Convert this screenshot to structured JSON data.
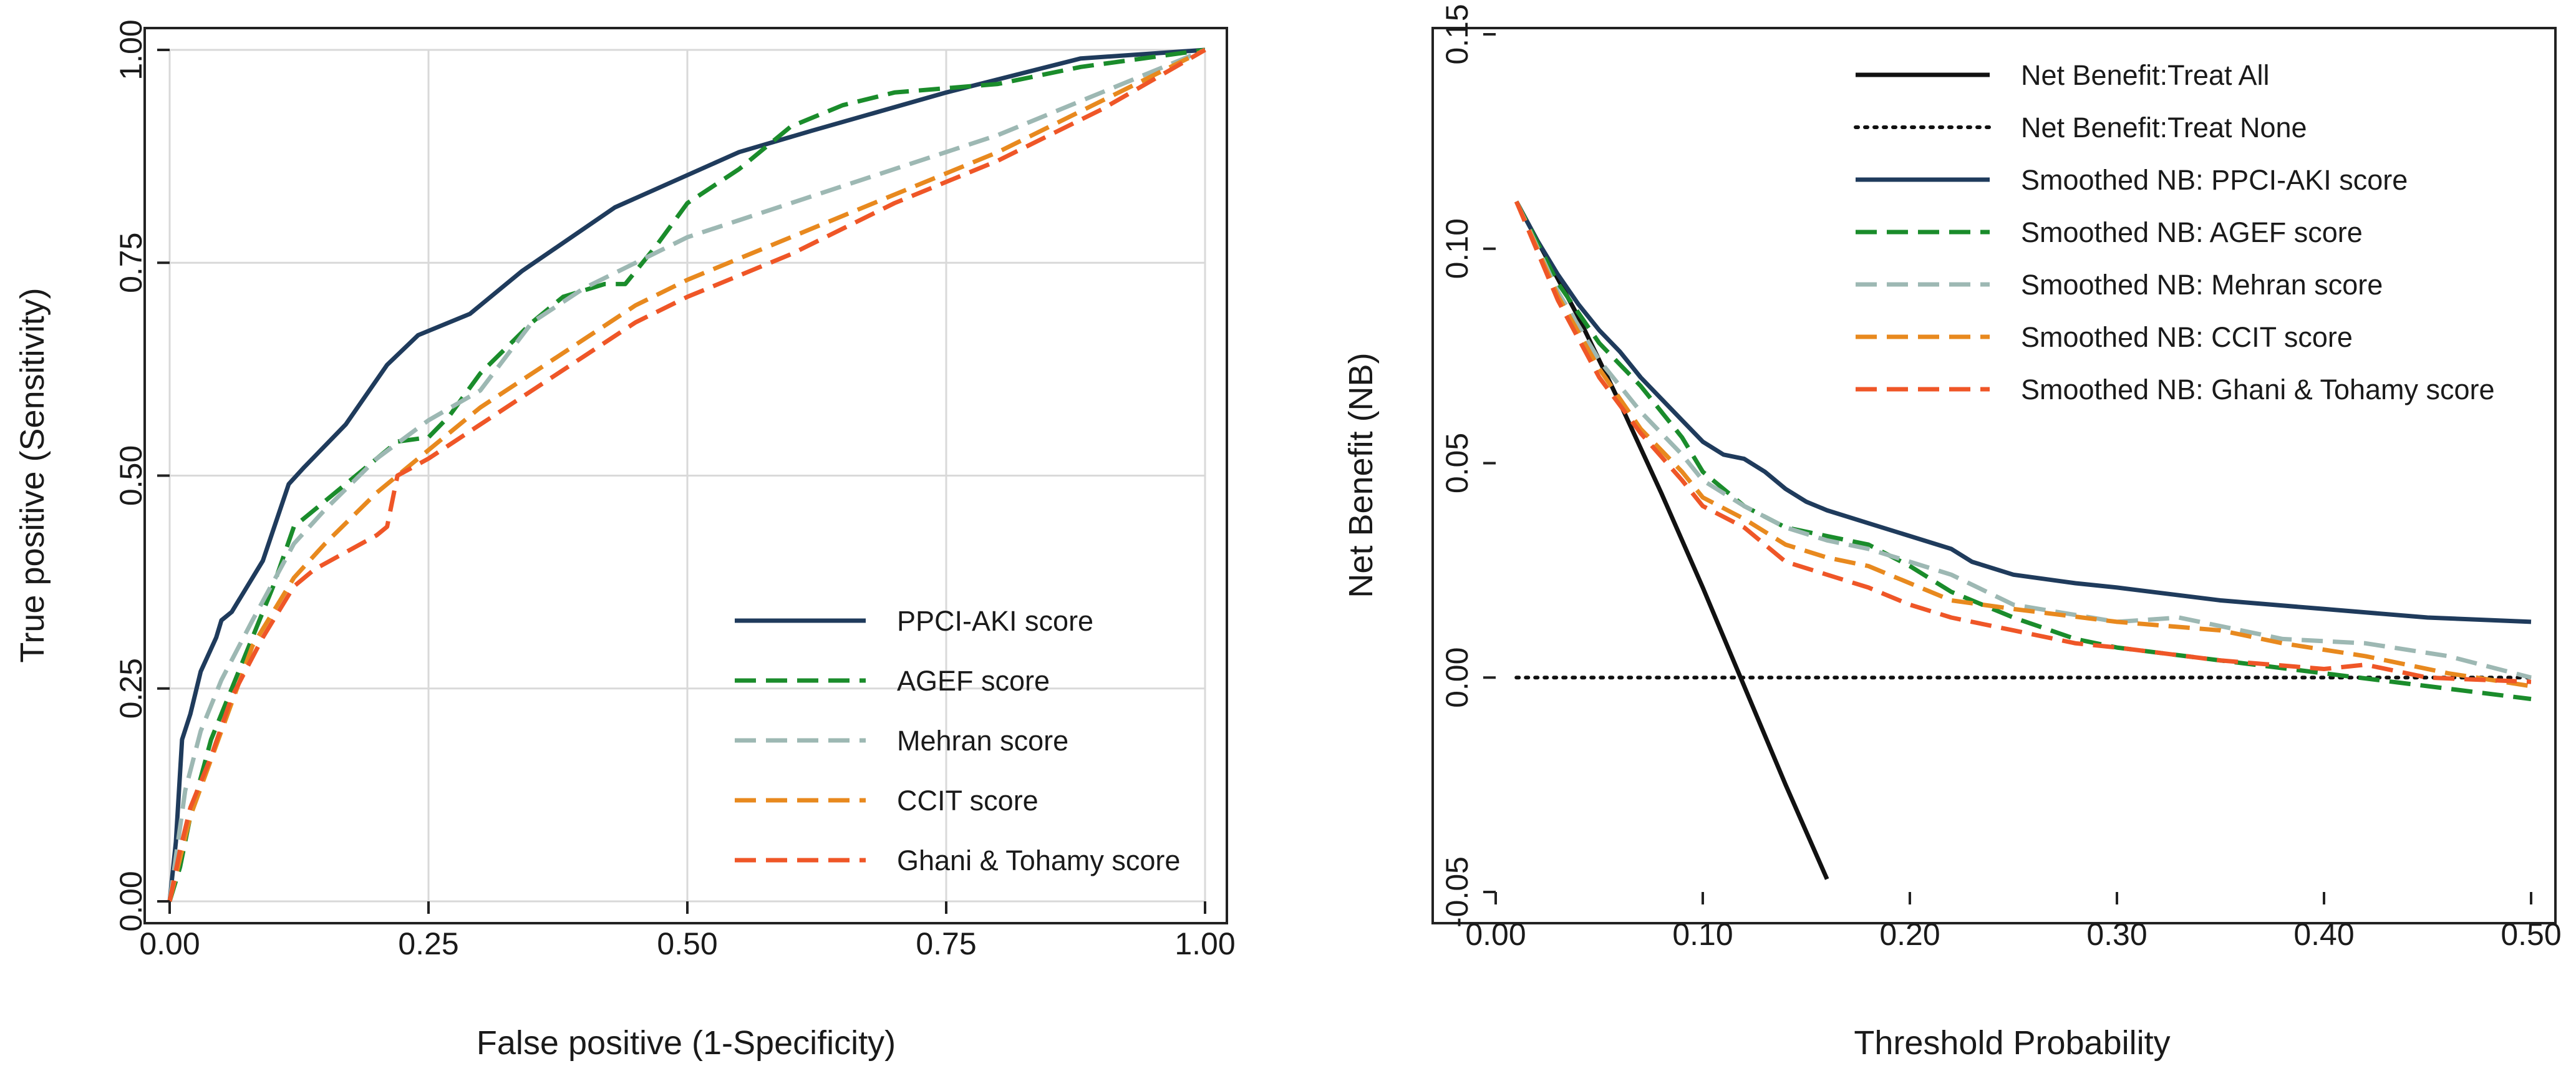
{
  "chart_data": [
    {
      "type": "line",
      "title": "",
      "xlabel": "False positive (1-Specificity)",
      "ylabel": "True positive (Sensitivity)",
      "xlim": [
        0,
        1
      ],
      "ylim": [
        0,
        1
      ],
      "grid": true,
      "legend_position": "bottom-right",
      "x_ticks": [
        "0.00",
        "0.25",
        "0.50",
        "0.75",
        "1.00"
      ],
      "y_ticks": [
        "0.00",
        "0.25",
        "0.50",
        "0.75",
        "1.00"
      ],
      "series": [
        {
          "name": "PPCI-AKI score",
          "color": "#1f3b5c",
          "dash": "solid",
          "points": [
            [
              0,
              0
            ],
            [
              0.006,
              0.07
            ],
            [
              0.012,
              0.19
            ],
            [
              0.02,
              0.22
            ],
            [
              0.03,
              0.27
            ],
            [
              0.045,
              0.31
            ],
            [
              0.05,
              0.33
            ],
            [
              0.06,
              0.34
            ],
            [
              0.08,
              0.38
            ],
            [
              0.09,
              0.4
            ],
            [
              0.115,
              0.49
            ],
            [
              0.13,
              0.51
            ],
            [
              0.17,
              0.56
            ],
            [
              0.21,
              0.63
            ],
            [
              0.24,
              0.665
            ],
            [
              0.29,
              0.69
            ],
            [
              0.34,
              0.74
            ],
            [
              0.43,
              0.815
            ],
            [
              0.55,
              0.88
            ],
            [
              0.62,
              0.905
            ],
            [
              0.75,
              0.95
            ],
            [
              0.88,
              0.99
            ],
            [
              1,
              1
            ]
          ]
        },
        {
          "name": "AGEF score",
          "color": "#1a8c2b",
          "dash": "dashed",
          "points": [
            [
              0,
              0
            ],
            [
              0.01,
              0.04
            ],
            [
              0.02,
              0.1
            ],
            [
              0.04,
              0.19
            ],
            [
              0.06,
              0.25
            ],
            [
              0.08,
              0.31
            ],
            [
              0.1,
              0.37
            ],
            [
              0.12,
              0.44
            ],
            [
              0.15,
              0.47
            ],
            [
              0.17,
              0.49
            ],
            [
              0.2,
              0.52
            ],
            [
              0.22,
              0.54
            ],
            [
              0.25,
              0.545
            ],
            [
              0.27,
              0.57
            ],
            [
              0.3,
              0.62
            ],
            [
              0.35,
              0.68
            ],
            [
              0.38,
              0.71
            ],
            [
              0.42,
              0.725
            ],
            [
              0.44,
              0.725
            ],
            [
              0.47,
              0.77
            ],
            [
              0.5,
              0.82
            ],
            [
              0.55,
              0.86
            ],
            [
              0.6,
              0.91
            ],
            [
              0.65,
              0.935
            ],
            [
              0.7,
              0.95
            ],
            [
              0.75,
              0.955
            ],
            [
              0.8,
              0.96
            ],
            [
              0.88,
              0.98
            ],
            [
              1,
              1
            ]
          ]
        },
        {
          "name": "Mehran score",
          "color": "#9db8b3",
          "dash": "dashed",
          "points": [
            [
              0,
              0
            ],
            [
              0.015,
              0.13
            ],
            [
              0.03,
              0.2
            ],
            [
              0.05,
              0.26
            ],
            [
              0.08,
              0.33
            ],
            [
              0.12,
              0.42
            ],
            [
              0.15,
              0.46
            ],
            [
              0.2,
              0.52
            ],
            [
              0.25,
              0.565
            ],
            [
              0.3,
              0.6
            ],
            [
              0.35,
              0.68
            ],
            [
              0.4,
              0.72
            ],
            [
              0.45,
              0.75
            ],
            [
              0.5,
              0.78
            ],
            [
              0.55,
              0.8
            ],
            [
              0.6,
              0.82
            ],
            [
              0.7,
              0.86
            ],
            [
              0.8,
              0.9
            ],
            [
              0.9,
              0.95
            ],
            [
              1,
              1
            ]
          ]
        },
        {
          "name": "CCIT score",
          "color": "#e8891e",
          "dash": "dashed",
          "points": [
            [
              0,
              0
            ],
            [
              0.02,
              0.1
            ],
            [
              0.05,
              0.2
            ],
            [
              0.08,
              0.3
            ],
            [
              0.12,
              0.38
            ],
            [
              0.15,
              0.42
            ],
            [
              0.2,
              0.48
            ],
            [
              0.25,
              0.53
            ],
            [
              0.3,
              0.58
            ],
            [
              0.35,
              0.62
            ],
            [
              0.4,
              0.66
            ],
            [
              0.45,
              0.7
            ],
            [
              0.5,
              0.73
            ],
            [
              0.6,
              0.78
            ],
            [
              0.7,
              0.83
            ],
            [
              0.8,
              0.88
            ],
            [
              0.9,
              0.94
            ],
            [
              1,
              1
            ]
          ]
        },
        {
          "name": "Ghani & Tohamy score",
          "color": "#ef5627",
          "dash": "dashed",
          "points": [
            [
              0,
              0
            ],
            [
              0.01,
              0.06
            ],
            [
              0.02,
              0.11
            ],
            [
              0.04,
              0.17
            ],
            [
              0.06,
              0.24
            ],
            [
              0.09,
              0.31
            ],
            [
              0.12,
              0.37
            ],
            [
              0.14,
              0.39
            ],
            [
              0.17,
              0.41
            ],
            [
              0.2,
              0.43
            ],
            [
              0.21,
              0.44
            ],
            [
              0.22,
              0.5
            ],
            [
              0.25,
              0.52
            ],
            [
              0.3,
              0.56
            ],
            [
              0.35,
              0.6
            ],
            [
              0.4,
              0.64
            ],
            [
              0.45,
              0.68
            ],
            [
              0.5,
              0.71
            ],
            [
              0.6,
              0.76
            ],
            [
              0.7,
              0.82
            ],
            [
              0.8,
              0.87
            ],
            [
              0.9,
              0.93
            ],
            [
              1,
              1
            ]
          ]
        }
      ]
    },
    {
      "type": "line",
      "title": "",
      "xlabel": "Threshold Probability",
      "ylabel": "Net Benefit (NB)",
      "xlim": [
        0,
        0.5
      ],
      "ylim": [
        -0.05,
        0.15
      ],
      "grid": false,
      "legend_position": "top-right",
      "x_ticks": [
        "0.00",
        "0.10",
        "0.20",
        "0.30",
        "0.40",
        "0.50"
      ],
      "y_ticks": [
        "-0.05",
        "0.00",
        "0.05",
        "0.10",
        "0.15"
      ],
      "series": [
        {
          "name": "Net Benefit:Treat All",
          "color": "#111111",
          "dash": "solid",
          "points": [
            [
              0.01,
              0.111
            ],
            [
              0.02,
              0.102
            ],
            [
              0.04,
              0.084
            ],
            [
              0.06,
              0.064
            ],
            [
              0.08,
              0.043
            ],
            [
              0.1,
              0.021
            ],
            [
              0.12,
              -0.002
            ],
            [
              0.14,
              -0.025
            ],
            [
              0.16,
              -0.047
            ]
          ]
        },
        {
          "name": "Net Benefit:Treat None",
          "color": "#111111",
          "dash": "dotted",
          "points": [
            [
              0.01,
              0
            ],
            [
              0.5,
              0
            ]
          ]
        },
        {
          "name": "Smoothed NB: PPCI-AKI score",
          "color": "#1f3b5c",
          "dash": "solid",
          "points": [
            [
              0.01,
              0.111
            ],
            [
              0.02,
              0.102
            ],
            [
              0.03,
              0.094
            ],
            [
              0.04,
              0.087
            ],
            [
              0.05,
              0.081
            ],
            [
              0.06,
              0.076
            ],
            [
              0.07,
              0.07
            ],
            [
              0.08,
              0.065
            ],
            [
              0.09,
              0.06
            ],
            [
              0.1,
              0.055
            ],
            [
              0.11,
              0.052
            ],
            [
              0.12,
              0.051
            ],
            [
              0.13,
              0.048
            ],
            [
              0.14,
              0.044
            ],
            [
              0.15,
              0.041
            ],
            [
              0.16,
              0.039
            ],
            [
              0.18,
              0.036
            ],
            [
              0.2,
              0.033
            ],
            [
              0.22,
              0.03
            ],
            [
              0.23,
              0.027
            ],
            [
              0.25,
              0.024
            ],
            [
              0.28,
              0.022
            ],
            [
              0.3,
              0.021
            ],
            [
              0.35,
              0.018
            ],
            [
              0.4,
              0.016
            ],
            [
              0.45,
              0.014
            ],
            [
              0.5,
              0.013
            ]
          ]
        },
        {
          "name": "Smoothed NB: AGEF score",
          "color": "#1a8c2b",
          "dash": "dashed",
          "points": [
            [
              0.01,
              0.111
            ],
            [
              0.03,
              0.092
            ],
            [
              0.05,
              0.078
            ],
            [
              0.07,
              0.068
            ],
            [
              0.09,
              0.056
            ],
            [
              0.1,
              0.048
            ],
            [
              0.12,
              0.04
            ],
            [
              0.14,
              0.035
            ],
            [
              0.16,
              0.033
            ],
            [
              0.18,
              0.031
            ],
            [
              0.2,
              0.026
            ],
            [
              0.22,
              0.02
            ],
            [
              0.25,
              0.014
            ],
            [
              0.28,
              0.009
            ],
            [
              0.3,
              0.007
            ],
            [
              0.35,
              0.004
            ],
            [
              0.4,
              0.001
            ],
            [
              0.45,
              -0.002
            ],
            [
              0.5,
              -0.005
            ]
          ]
        },
        {
          "name": "Smoothed NB: Mehran score",
          "color": "#9db8b3",
          "dash": "dashed",
          "points": [
            [
              0.01,
              0.111
            ],
            [
              0.03,
              0.09
            ],
            [
              0.05,
              0.074
            ],
            [
              0.07,
              0.062
            ],
            [
              0.09,
              0.052
            ],
            [
              0.1,
              0.046
            ],
            [
              0.12,
              0.04
            ],
            [
              0.14,
              0.035
            ],
            [
              0.16,
              0.032
            ],
            [
              0.18,
              0.03
            ],
            [
              0.2,
              0.027
            ],
            [
              0.22,
              0.024
            ],
            [
              0.25,
              0.017
            ],
            [
              0.3,
              0.013
            ],
            [
              0.33,
              0.014
            ],
            [
              0.35,
              0.012
            ],
            [
              0.38,
              0.009
            ],
            [
              0.42,
              0.008
            ],
            [
              0.46,
              0.005
            ],
            [
              0.5,
              0.0
            ]
          ]
        },
        {
          "name": "Smoothed NB: CCIT score",
          "color": "#e8891e",
          "dash": "dashed",
          "points": [
            [
              0.01,
              0.111
            ],
            [
              0.03,
              0.089
            ],
            [
              0.05,
              0.072
            ],
            [
              0.07,
              0.058
            ],
            [
              0.09,
              0.048
            ],
            [
              0.1,
              0.042
            ],
            [
              0.12,
              0.037
            ],
            [
              0.14,
              0.031
            ],
            [
              0.16,
              0.028
            ],
            [
              0.18,
              0.026
            ],
            [
              0.2,
              0.022
            ],
            [
              0.22,
              0.018
            ],
            [
              0.25,
              0.016
            ],
            [
              0.3,
              0.013
            ],
            [
              0.35,
              0.011
            ],
            [
              0.38,
              0.008
            ],
            [
              0.42,
              0.005
            ],
            [
              0.46,
              0.001
            ],
            [
              0.5,
              -0.002
            ]
          ]
        },
        {
          "name": "Smoothed NB: Ghani & Tohamy score",
          "color": "#ef5627",
          "dash": "dashed",
          "points": [
            [
              0.01,
              0.111
            ],
            [
              0.03,
              0.088
            ],
            [
              0.05,
              0.07
            ],
            [
              0.07,
              0.057
            ],
            [
              0.09,
              0.046
            ],
            [
              0.1,
              0.04
            ],
            [
              0.12,
              0.035
            ],
            [
              0.13,
              0.031
            ],
            [
              0.14,
              0.027
            ],
            [
              0.16,
              0.024
            ],
            [
              0.18,
              0.021
            ],
            [
              0.2,
              0.017
            ],
            [
              0.22,
              0.014
            ],
            [
              0.25,
              0.011
            ],
            [
              0.28,
              0.008
            ],
            [
              0.3,
              0.007
            ],
            [
              0.35,
              0.004
            ],
            [
              0.4,
              0.002
            ],
            [
              0.42,
              0.003
            ],
            [
              0.45,
              0.0
            ],
            [
              0.5,
              -0.001
            ]
          ]
        }
      ]
    }
  ]
}
